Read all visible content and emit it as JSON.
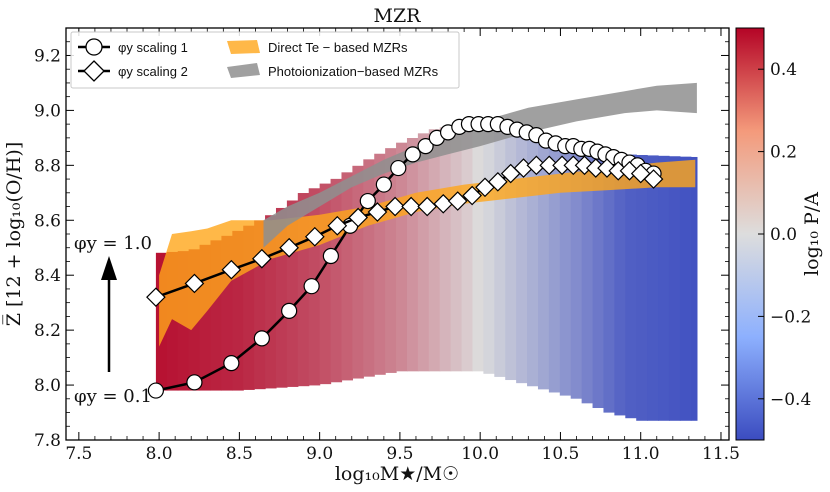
{
  "chart_data": {
    "type": "line",
    "title": "MZR",
    "xlabel": "log₁₀M★/M☉",
    "ylabel": "Z̅ [12 + log₁₀(O/H)]",
    "colorbar_label": "log₁₀ P/A",
    "xlim": [
      7.42,
      11.55
    ],
    "ylim": [
      7.8,
      9.3
    ],
    "xticks": [
      7.5,
      8.0,
      8.5,
      9.0,
      9.5,
      10.0,
      10.5,
      11.0,
      11.5
    ],
    "xtick_labels": [
      "7.5",
      "8.0",
      "8.5",
      "9.0",
      "9.5",
      "10.0",
      "10.5",
      "11.0",
      "11.5"
    ],
    "yticks": [
      7.8,
      8.0,
      8.2,
      8.4,
      8.6,
      8.8,
      9.0,
      9.2
    ],
    "ytick_labels": [
      "7.8",
      "8.0",
      "8.2",
      "8.4",
      "8.6",
      "8.8",
      "9.0",
      "9.2"
    ],
    "colorbar": {
      "range": [
        -0.5,
        0.5
      ],
      "ticks": [
        0.4,
        0.2,
        0.0,
        -0.2,
        -0.4
      ],
      "tick_labels": [
        "0.4",
        "0.2",
        "0.0",
        "−0.2",
        "−0.4"
      ],
      "colors": {
        "low": "#3b4cc0",
        "mid": "#dddddd",
        "high": "#b40426"
      }
    },
    "legend": {
      "placement": "top-left",
      "entries": [
        {
          "label": "φy scaling 1",
          "marker": "circle"
        },
        {
          "label": "φy scaling 2",
          "marker": "diamond"
        },
        {
          "label": "Direct Te − based MZRs",
          "color": "#ffa61a"
        },
        {
          "label": "Photoionization−based MZRs",
          "color": "#909090"
        }
      ]
    },
    "annotations": {
      "arrow_top_label": "φy = 1.0",
      "arrow_bottom_label": "φy = 0.1"
    },
    "background_bands": {
      "x_start": 7.98,
      "x_end": 11.35,
      "step": 0.068,
      "lower": {
        "x": [
          7.98,
          8.5,
          9.0,
          9.5,
          10.0,
          10.3,
          10.6,
          10.8,
          11.0,
          11.35
        ],
        "y": [
          7.98,
          7.98,
          8.0,
          8.05,
          8.05,
          8.0,
          7.95,
          7.9,
          7.87,
          7.87
        ]
      },
      "upper": {
        "x": [
          7.98,
          8.2,
          8.45,
          8.7,
          8.9,
          9.1,
          9.3,
          9.5,
          9.7,
          9.9,
          10.05,
          10.3,
          10.5,
          10.7,
          10.9,
          11.35
        ],
        "y": [
          8.48,
          8.49,
          8.55,
          8.62,
          8.7,
          8.75,
          8.82,
          8.88,
          8.93,
          8.95,
          8.95,
          8.93,
          8.89,
          8.86,
          8.84,
          8.83
        ]
      },
      "color_value": {
        "x": [
          7.98,
          8.5,
          9.0,
          9.5,
          9.9,
          10.2,
          10.6,
          10.9,
          11.35
        ],
        "v": [
          0.47,
          0.42,
          0.33,
          0.2,
          0.05,
          -0.1,
          -0.28,
          -0.43,
          -0.48
        ]
      }
    },
    "direct_te_band": {
      "x": [
        8.0,
        8.08,
        8.2,
        8.3,
        8.45,
        8.7,
        9.0,
        9.3,
        9.6,
        9.9,
        10.2,
        10.5,
        10.8,
        11.1,
        11.34
      ],
      "lower": [
        8.14,
        8.24,
        8.2,
        8.27,
        8.38,
        8.46,
        8.51,
        8.58,
        8.63,
        8.66,
        8.68,
        8.7,
        8.71,
        8.72,
        8.72
      ],
      "upper": [
        8.4,
        8.55,
        8.56,
        8.57,
        8.6,
        8.6,
        8.62,
        8.65,
        8.7,
        8.73,
        8.75,
        8.77,
        8.79,
        8.81,
        8.82
      ]
    },
    "photoionization_band": {
      "x": [
        8.65,
        8.8,
        9.0,
        9.2,
        9.4,
        9.6,
        9.8,
        10.0,
        10.3,
        10.6,
        10.9,
        11.1,
        11.35
      ],
      "lower": [
        8.5,
        8.58,
        8.65,
        8.72,
        8.77,
        8.81,
        8.84,
        8.87,
        8.92,
        8.96,
        8.99,
        9.0,
        8.99
      ],
      "upper": [
        8.6,
        8.65,
        8.7,
        8.76,
        8.82,
        8.87,
        8.92,
        8.96,
        9.01,
        9.04,
        9.07,
        9.09,
        9.1
      ]
    },
    "series": [
      {
        "name": "φy scaling 1",
        "marker": "circle",
        "x": [
          7.98,
          8.22,
          8.45,
          8.64,
          8.81,
          8.95,
          9.07,
          9.19,
          9.3,
          9.4,
          9.49,
          9.58,
          9.66,
          9.73,
          9.8,
          9.87,
          9.93,
          9.99,
          10.05,
          10.11,
          10.17,
          10.23,
          10.29,
          10.35,
          10.41,
          10.47,
          10.53,
          10.58,
          10.63,
          10.68,
          10.73,
          10.78,
          10.83,
          10.88,
          10.93,
          10.98,
          11.03,
          11.08
        ],
        "y": [
          7.98,
          8.01,
          8.08,
          8.17,
          8.27,
          8.36,
          8.47,
          8.58,
          8.67,
          8.73,
          8.79,
          8.84,
          8.87,
          8.9,
          8.92,
          8.94,
          8.95,
          8.95,
          8.95,
          8.95,
          8.94,
          8.93,
          8.92,
          8.91,
          8.89,
          8.88,
          8.87,
          8.87,
          8.86,
          8.86,
          8.85,
          8.84,
          8.83,
          8.82,
          8.81,
          8.8,
          8.78,
          8.77
        ]
      },
      {
        "name": "φy scaling 2",
        "marker": "diamond",
        "x": [
          7.98,
          8.22,
          8.45,
          8.64,
          8.81,
          8.97,
          9.11,
          9.24,
          9.36,
          9.47,
          9.57,
          9.67,
          9.77,
          9.86,
          9.95,
          10.03,
          10.11,
          10.19,
          10.27,
          10.35,
          10.43,
          10.51,
          10.58,
          10.65,
          10.72,
          10.79,
          10.86,
          10.93,
          11.0,
          11.08
        ],
        "y": [
          8.32,
          8.37,
          8.42,
          8.46,
          8.5,
          8.54,
          8.58,
          8.61,
          8.63,
          8.65,
          8.65,
          8.65,
          8.66,
          8.67,
          8.69,
          8.72,
          8.74,
          8.77,
          8.79,
          8.8,
          8.8,
          8.8,
          8.8,
          8.8,
          8.79,
          8.79,
          8.78,
          8.78,
          8.77,
          8.75
        ]
      }
    ]
  }
}
